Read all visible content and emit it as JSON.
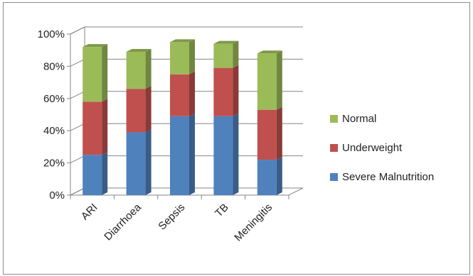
{
  "chart_data": {
    "type": "bar",
    "stacked": true,
    "three_d": true,
    "categories": [
      "ARI",
      "Diarrhoea",
      "Sepsis",
      "TB",
      "Meningitis"
    ],
    "series": [
      {
        "name": "Severe Malnutrition",
        "color": "#4f81bd",
        "values": [
          25,
          39,
          49,
          49,
          22
        ]
      },
      {
        "name": "Underweight",
        "color": "#c0504d",
        "values": [
          33,
          27,
          26,
          30,
          31
        ]
      },
      {
        "name": "Normal",
        "color": "#9bbb59",
        "values": [
          34,
          23,
          20,
          15,
          35
        ]
      }
    ],
    "yticks": [
      "0%",
      "20%",
      "40%",
      "60%",
      "80%",
      "100%"
    ],
    "ylim": [
      0,
      100
    ],
    "grid": true,
    "legend_position": "right",
    "title": "",
    "xlabel": "",
    "ylabel": ""
  }
}
